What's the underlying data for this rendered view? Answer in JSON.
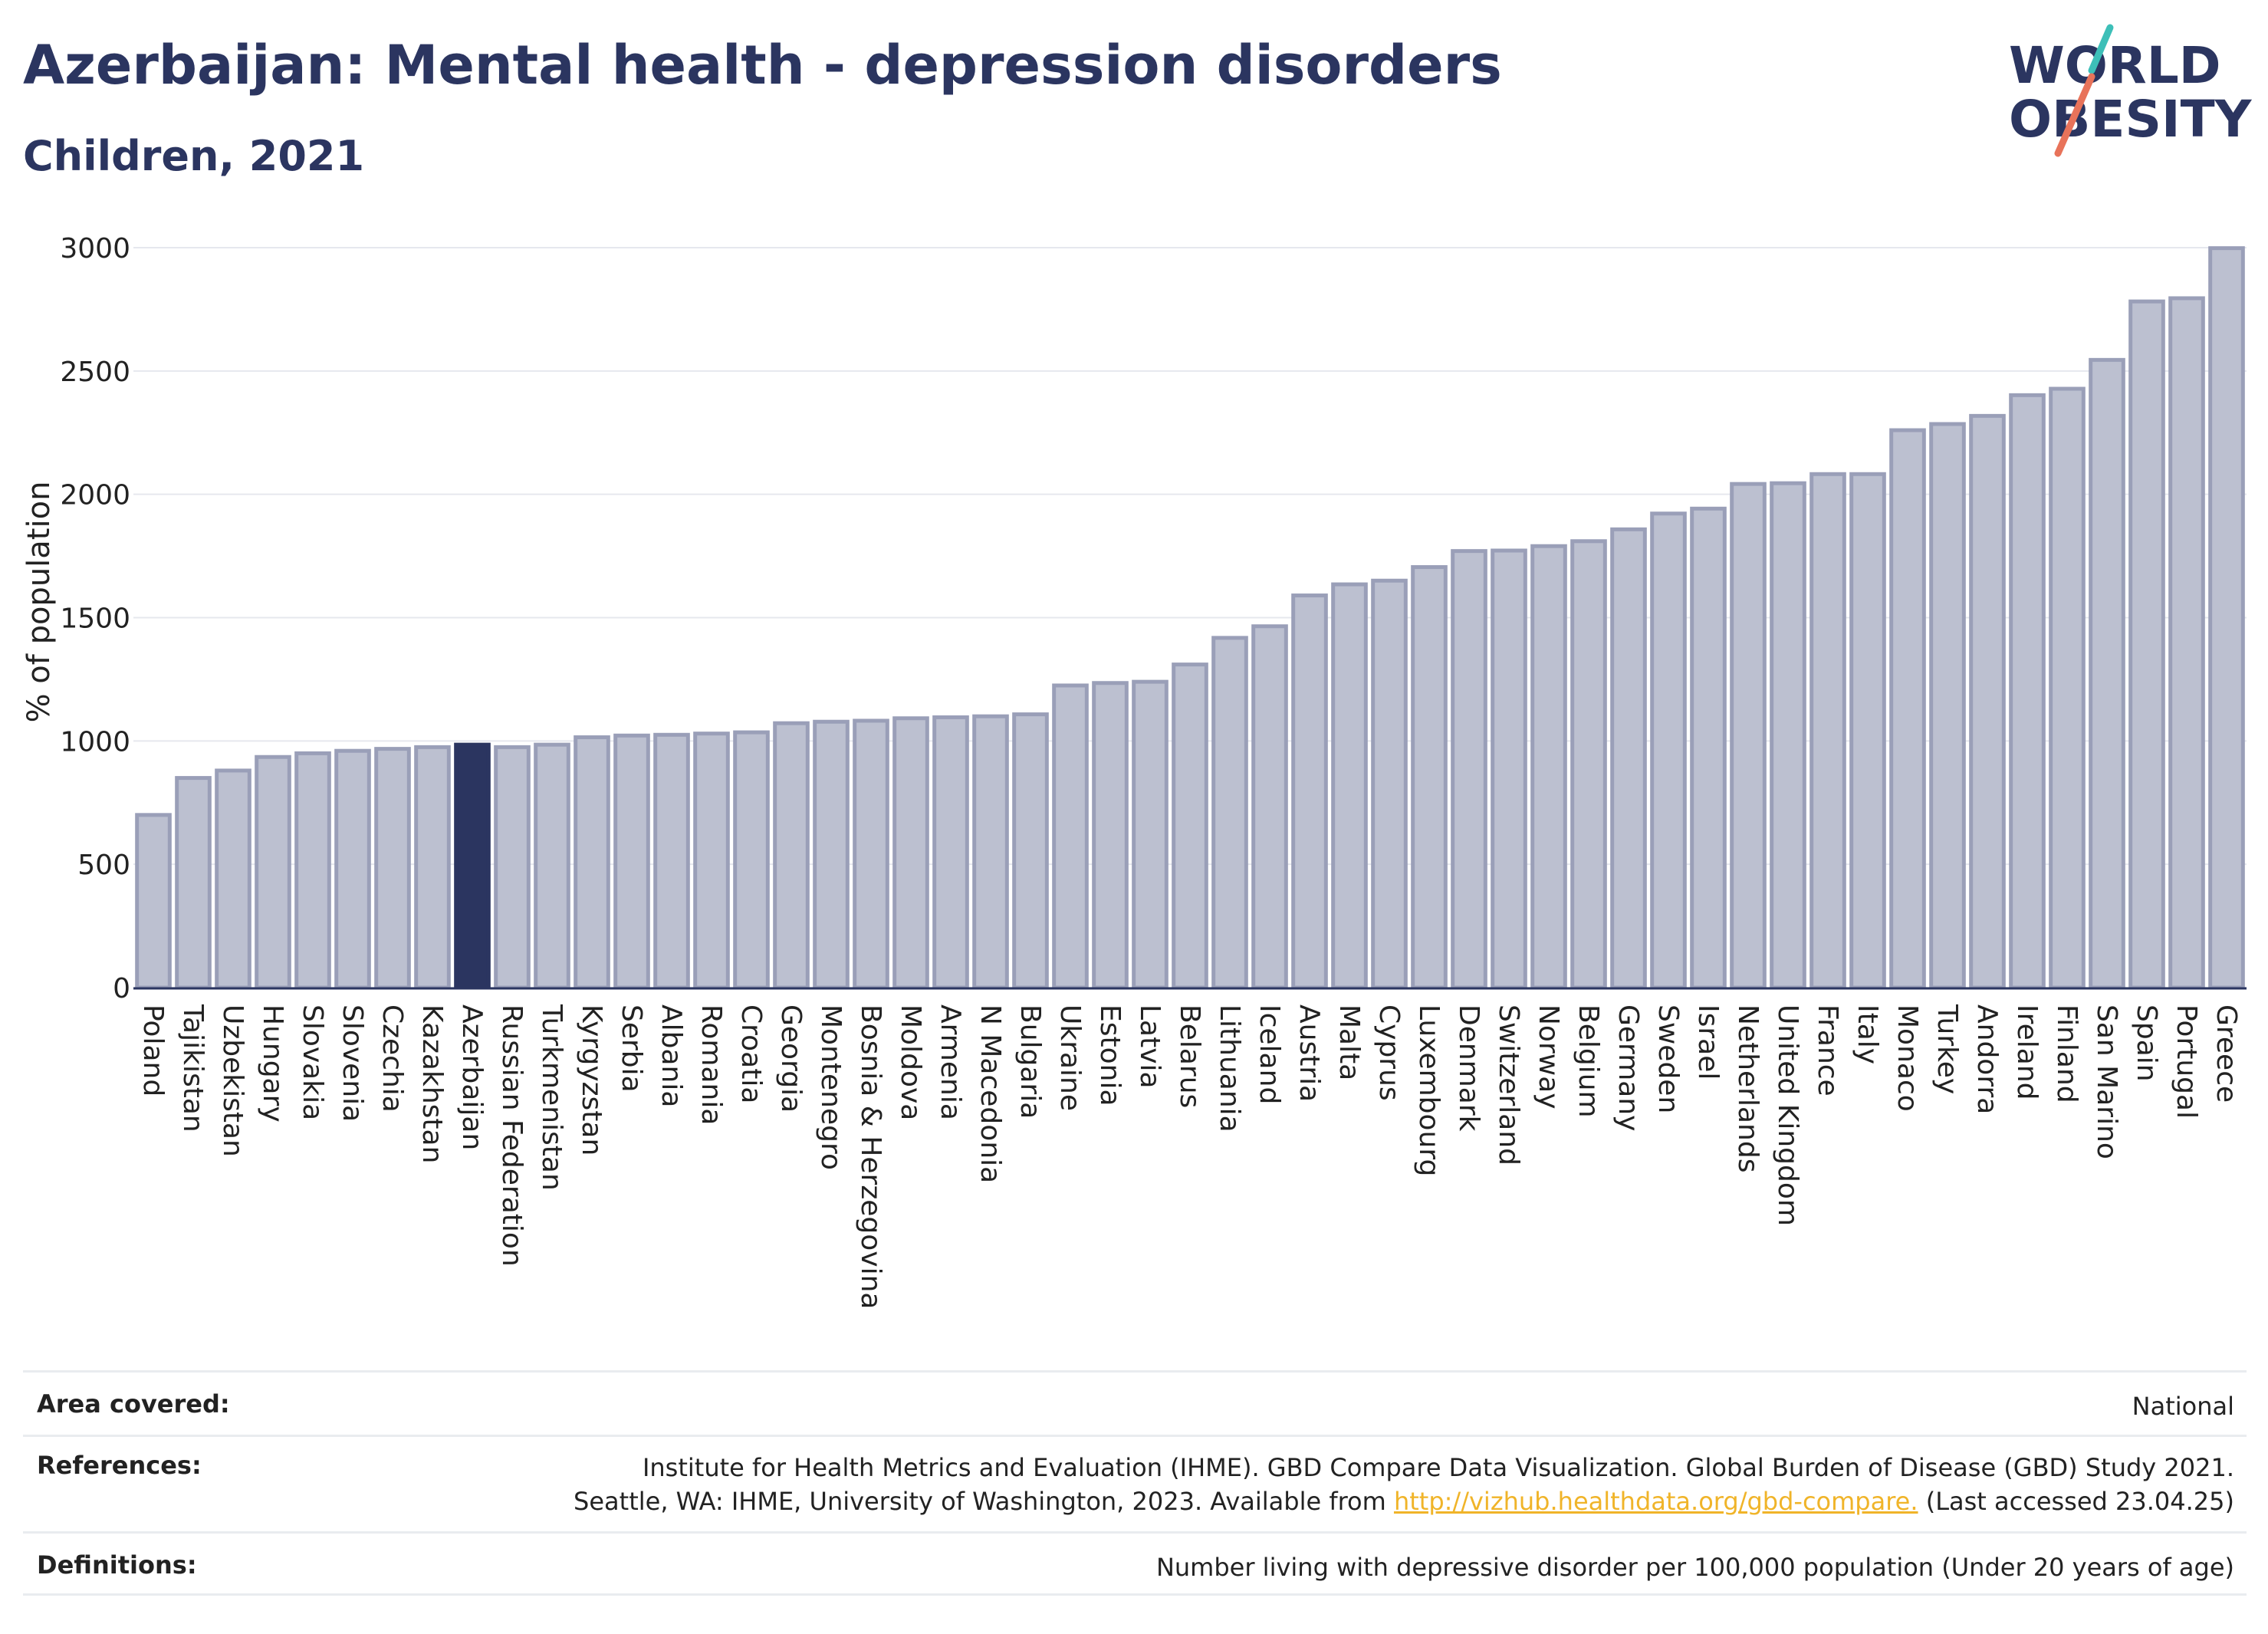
{
  "header": {
    "title": "Azerbaijan: Mental health - depression disorders",
    "subtitle": "Children, 2021"
  },
  "logo": {
    "line1": "WORLD",
    "line2": "OBESITY"
  },
  "colors": {
    "title": "#2b3560",
    "highlight_bar": "#2b3560",
    "bar_fill": "#bcc0d0",
    "bar_stroke": "#9a9fb8",
    "logo_teal": "#3dbfb8",
    "logo_coral": "#e8735a",
    "link": "#f0b429"
  },
  "chart_data": {
    "type": "bar",
    "title": "Azerbaijan: Mental health - depression disorders",
    "subtitle": "Children, 2021",
    "ylabel": "% of population",
    "ylim": [
      0,
      3000
    ],
    "yticks": [
      0,
      500,
      1000,
      1500,
      2000,
      2500,
      3000
    ],
    "grid": true,
    "highlight": "Azerbaijan",
    "categories": [
      "Poland",
      "Tajikistan",
      "Uzbekistan",
      "Hungary",
      "Slovakia",
      "Slovenia",
      "Czechia",
      "Kazakhstan",
      "Azerbaijan",
      "Russian Federation",
      "Turkmenistan",
      "Kyrgyzstan",
      "Serbia",
      "Albania",
      "Romania",
      "Croatia",
      "Georgia",
      "Montenegro",
      "Bosnia & Herzegovina",
      "Moldova",
      "Armenia",
      "N Macedonia",
      "Bulgaria",
      "Ukraine",
      "Estonia",
      "Latvia",
      "Belarus",
      "Lithuania",
      "Iceland",
      "Austria",
      "Malta",
      "Cyprus",
      "Luxembourg",
      "Denmark",
      "Switzerland",
      "Norway",
      "Belgium",
      "Germany",
      "Sweden",
      "Israel",
      "Netherlands",
      "United Kingdom",
      "France",
      "Italy",
      "Monaco",
      "Turkey",
      "Andorra",
      "Ireland",
      "Finland",
      "San Marino",
      "Spain",
      "Portugal",
      "Greece"
    ],
    "values": [
      700,
      850,
      880,
      935,
      950,
      960,
      968,
      975,
      985,
      975,
      985,
      1015,
      1022,
      1025,
      1030,
      1035,
      1072,
      1078,
      1082,
      1092,
      1096,
      1100,
      1108,
      1225,
      1235,
      1240,
      1310,
      1418,
      1465,
      1590,
      1635,
      1650,
      1705,
      1770,
      1772,
      1790,
      1810,
      1858,
      1922,
      1942,
      2042,
      2045,
      2082,
      2082,
      2260,
      2285,
      2318,
      2402,
      2428,
      2545,
      2782,
      2795,
      2998
    ]
  },
  "meta": {
    "area": {
      "label": "Area covered:",
      "value": "National"
    },
    "references": {
      "label": "References:",
      "line1": "Institute for Health Metrics and Evaluation (IHME). GBD Compare Data Visualization. Global Burden of Disease (GBD) Study 2021.",
      "line2_pre": "Seattle, WA: IHME, University of Washington, 2023. Available from ",
      "link": "http://vizhub.healthdata.org/gbd-compare.",
      "line2_post": " (Last accessed 23.04.25)"
    },
    "definitions": {
      "label": "Definitions:",
      "value": "Number living with depressive disorder per 100,000 population (Under 20 years of age)"
    }
  }
}
